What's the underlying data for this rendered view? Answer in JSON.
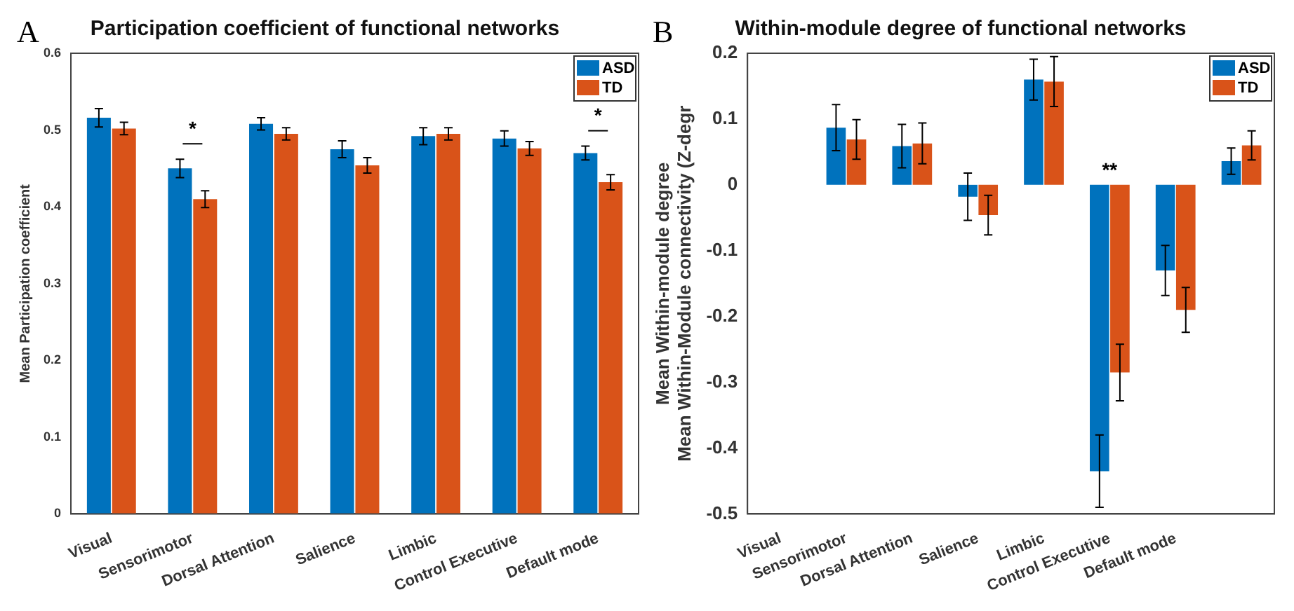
{
  "chart_data": [
    {
      "type": "bar",
      "title": "Participation coefficient of functional networks",
      "ylabel": "Mean Participation coefficient",
      "categories": [
        "Visual",
        "Sensorimotor",
        "Dorsal Attention",
        "Salience",
        "Limbic",
        "Control Executive",
        "Default mode"
      ],
      "series": [
        {
          "name": "ASD",
          "color": "#0072bd",
          "values": [
            0.516,
            0.45,
            0.508,
            0.475,
            0.492,
            0.489,
            0.47
          ],
          "errors": [
            0.012,
            0.012,
            0.008,
            0.011,
            0.011,
            0.01,
            0.009
          ]
        },
        {
          "name": "TD",
          "color": "#d95319",
          "values": [
            0.502,
            0.41,
            0.495,
            0.454,
            0.495,
            0.476,
            0.432
          ],
          "errors": [
            0.008,
            0.011,
            0.008,
            0.01,
            0.008,
            0.009,
            0.01
          ]
        }
      ],
      "ylim": [
        0,
        0.6
      ],
      "yticks": [
        0,
        0.1,
        0.2,
        0.3,
        0.4,
        0.5,
        0.6
      ],
      "legend": "top right",
      "annotations": [
        "A",
        "*",
        "*"
      ]
    },
    {
      "type": "bar",
      "title": "Within-module degree of functional networks",
      "ylabel": "Mean Within-module degree\nMean Within-Module connectivity (Z-degr",
      "categories": [
        "Visual",
        "Sensorimotor",
        "Dorsal Attention",
        "Salience",
        "Limbic",
        "Control Executive",
        "Default mode",
        null
      ],
      "series": [
        {
          "name": "ASD",
          "color": "#0072bd",
          "values": [
            null,
            0.087,
            0.059,
            -0.018,
            0.16,
            -0.435,
            -0.13,
            0.036
          ],
          "errors": [
            null,
            0.035,
            0.033,
            0.036,
            0.031,
            0.055,
            0.038,
            0.02
          ]
        },
        {
          "name": "TD",
          "color": "#d95319",
          "values": [
            null,
            0.069,
            0.063,
            -0.046,
            0.157,
            -0.285,
            -0.19,
            0.06
          ],
          "errors": [
            null,
            0.03,
            0.031,
            0.03,
            0.038,
            0.043,
            0.034,
            0.022
          ]
        }
      ],
      "ylim": [
        -0.5,
        0.2
      ],
      "yticks": [
        -0.5,
        -0.4,
        -0.3,
        -0.2,
        -0.1,
        0,
        0.1,
        0.2
      ],
      "legend": "top right",
      "annotations": [
        "B",
        {
          "text": "**",
          "x": "Control Executive",
          "y": 0.01
        }
      ]
    }
  ]
}
